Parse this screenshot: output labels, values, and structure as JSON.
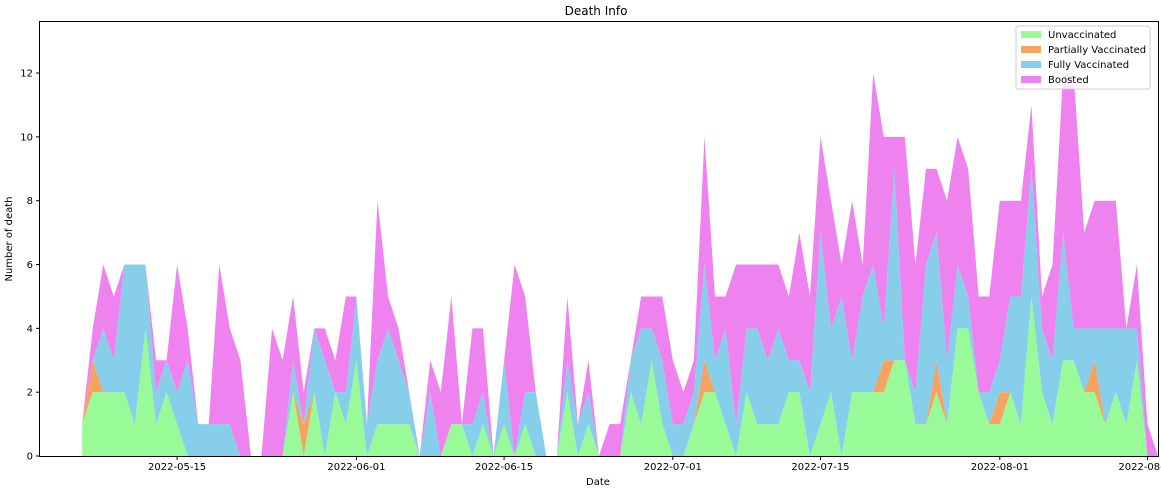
{
  "chart_data": {
    "type": "area",
    "stacked": true,
    "title": "Death Info",
    "xlabel": "Date",
    "ylabel": "Number of death",
    "xlim": [
      "2022-05-02",
      "2022-08-16"
    ],
    "ylim": [
      0,
      13.6
    ],
    "x_start": "2022-05-06",
    "x_end": "2022-08-12",
    "x_ticks": [
      "2022-05-15",
      "2022-06-01",
      "2022-06-15",
      "2022-07-01",
      "2022-07-15",
      "2022-08-01",
      "2022-08-15"
    ],
    "y_ticks": [
      0,
      2,
      4,
      6,
      8,
      10,
      12
    ],
    "grid": false,
    "legend_position": "top-right",
    "series": [
      {
        "name": "Unvaccinated",
        "color": "#98fb98",
        "values": [
          1,
          2,
          2,
          2,
          2,
          1,
          4,
          1,
          2,
          1,
          0,
          0,
          0,
          0,
          0,
          0,
          0,
          0,
          0,
          0,
          2,
          0,
          2,
          0,
          2,
          1,
          3,
          0,
          1,
          1,
          1,
          1,
          0,
          0,
          0,
          1,
          1,
          0,
          1,
          0,
          1,
          0,
          1,
          0,
          0,
          0,
          2,
          0,
          1,
          0,
          0,
          0,
          2,
          1,
          3,
          1,
          0,
          0,
          1,
          2,
          2,
          1,
          0,
          2,
          1,
          1,
          1,
          2,
          2,
          0,
          1,
          2,
          0,
          2,
          2,
          2,
          2,
          3,
          3,
          1,
          1,
          2,
          1,
          4,
          4,
          2,
          1,
          1,
          2,
          1,
          5,
          2,
          1,
          3,
          3,
          2,
          2,
          1,
          2,
          1,
          3,
          0,
          0
        ]
      },
      {
        "name": "Partially Vaccinated",
        "color": "#f4a460",
        "values": [
          0,
          1,
          0,
          0,
          0,
          0,
          0,
          0,
          0,
          0,
          0,
          0,
          0,
          0,
          0,
          0,
          0,
          0,
          0,
          0,
          0,
          1,
          0,
          0,
          0,
          0,
          0,
          0,
          0,
          0,
          0,
          0,
          0,
          0,
          0,
          0,
          0,
          0,
          0,
          0,
          0,
          0,
          0,
          0,
          0,
          0,
          0,
          0,
          0,
          0,
          0,
          0,
          0,
          0,
          0,
          0,
          0,
          0,
          0,
          1,
          0,
          0,
          0,
          0,
          0,
          0,
          0,
          0,
          0,
          0,
          0,
          0,
          0,
          0,
          0,
          0,
          1,
          0,
          0,
          0,
          0,
          1,
          0,
          0,
          0,
          0,
          0,
          1,
          0,
          0,
          0,
          0,
          0,
          0,
          0,
          0,
          1,
          0,
          0,
          0,
          0,
          0,
          0
        ]
      },
      {
        "name": "Fully Vaccinated",
        "color": "#87ceeb",
        "values": [
          0,
          0,
          2,
          1,
          4,
          5,
          2,
          1,
          1,
          1,
          3,
          1,
          1,
          1,
          1,
          0,
          0,
          0,
          0,
          0,
          1,
          0,
          2,
          3,
          0,
          1,
          2,
          1,
          2,
          3,
          2,
          1,
          0,
          2,
          0,
          0,
          0,
          1,
          1,
          0,
          2,
          0,
          1,
          2,
          0,
          0,
          1,
          1,
          1,
          0,
          0,
          0,
          1,
          3,
          1,
          2,
          1,
          1,
          1,
          3,
          1,
          3,
          1,
          2,
          3,
          2,
          3,
          1,
          1,
          2,
          6,
          2,
          5,
          1,
          3,
          4,
          1,
          6,
          0,
          1,
          5,
          4,
          2,
          2,
          1,
          0,
          1,
          1,
          3,
          4,
          4,
          2,
          2,
          4,
          1,
          2,
          1,
          3,
          2,
          3,
          1,
          0,
          0
        ]
      },
      {
        "name": "Boosted",
        "color": "#ee82ee",
        "values": [
          0,
          1,
          2,
          2,
          0,
          0,
          0,
          1,
          0,
          4,
          1,
          0,
          0,
          5,
          3,
          3,
          0,
          0,
          4,
          3,
          2,
          1,
          0,
          1,
          1,
          3,
          0,
          0,
          5,
          1,
          1,
          0,
          0,
          1,
          2,
          4,
          0,
          3,
          2,
          0,
          0,
          6,
          3,
          0,
          0,
          0,
          2,
          0,
          1,
          0,
          1,
          1,
          0,
          1,
          1,
          2,
          2,
          1,
          1,
          4,
          2,
          1,
          5,
          2,
          2,
          3,
          2,
          2,
          4,
          3,
          3,
          4,
          1,
          5,
          1,
          6,
          6,
          1,
          7,
          4,
          3,
          2,
          5,
          4,
          4,
          3,
          3,
          5,
          3,
          3,
          2,
          1,
          3,
          5,
          8,
          3,
          4,
          4,
          4,
          0,
          2,
          1,
          0
        ]
      }
    ]
  }
}
